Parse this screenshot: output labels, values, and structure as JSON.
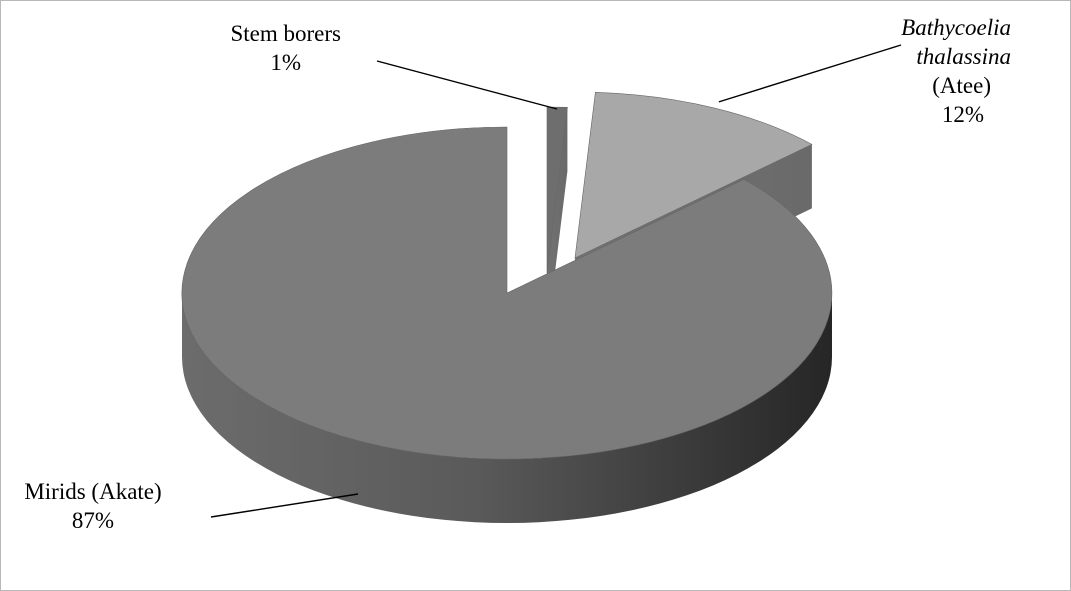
{
  "chart_data": {
    "type": "pie",
    "three_d": true,
    "exploded": true,
    "title": "",
    "legend": "none",
    "slices": [
      {
        "label_lines": [
          {
            "text": "Stem borers",
            "italic": false
          }
        ],
        "value_label": "1%",
        "value": 1,
        "color": "#6e6e6e"
      },
      {
        "label_lines": [
          {
            "text": "Bathycoelia",
            "italic": true
          },
          {
            "text": "thalassina",
            "italic": true
          },
          {
            "text": "(Atee)",
            "italic": false
          }
        ],
        "value_label": "12%",
        "value": 12,
        "color": "#a8a8a8"
      },
      {
        "label_lines": [
          {
            "text": "Mirids (Akate)",
            "italic": false
          }
        ],
        "value_label": "87%",
        "value": 87,
        "color": "#7c7c7c"
      }
    ]
  }
}
